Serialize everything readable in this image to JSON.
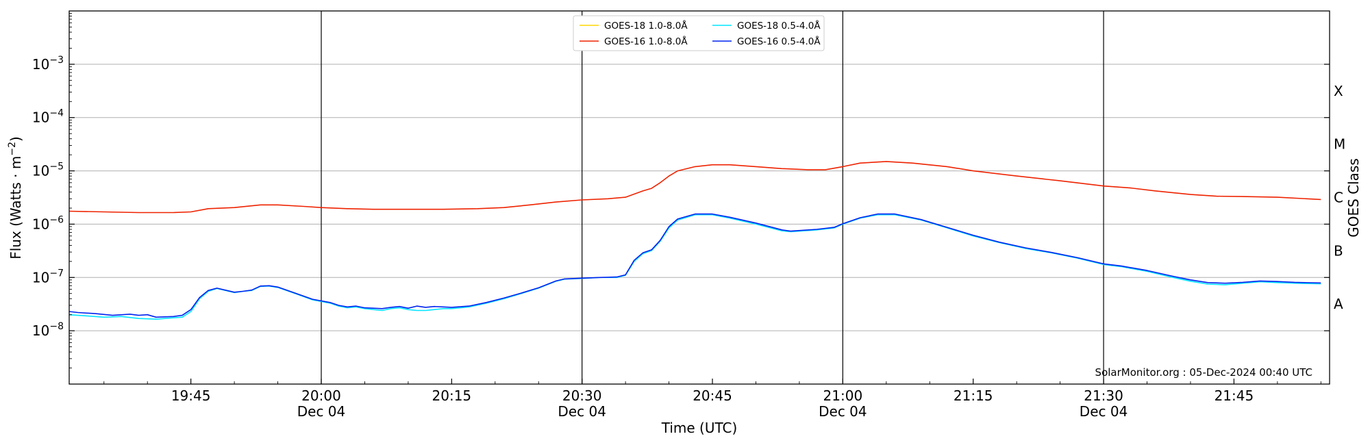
{
  "chart_data": {
    "type": "line",
    "xlabel": "Time (UTC)",
    "ylabel": "Flux (Watts · m⁻²)",
    "y2label": "GOES Class",
    "y_scale": "log",
    "ylim": [
      1e-09,
      0.01
    ],
    "xlim": [
      "2024-12-04 19:31",
      "2024-12-04 21:56"
    ],
    "grid": "horizontal at y decades",
    "legend_position": "top-center",
    "credit": "SolarMonitor.org : 05-Dec-2024 00:40 UTC",
    "x_ticks": [
      {
        "time": "19:45",
        "label": "19:45",
        "date": ""
      },
      {
        "time": "20:00",
        "label": "20:00",
        "date": "Dec 04"
      },
      {
        "time": "20:15",
        "label": "20:15",
        "date": ""
      },
      {
        "time": "20:30",
        "label": "20:30",
        "date": "Dec 04"
      },
      {
        "time": "20:45",
        "label": "20:45",
        "date": ""
      },
      {
        "time": "21:00",
        "label": "21:00",
        "date": "Dec 04"
      },
      {
        "time": "21:15",
        "label": "21:15",
        "date": ""
      },
      {
        "time": "21:30",
        "label": "21:30",
        "date": "Dec 04"
      },
      {
        "time": "21:45",
        "label": "21:45",
        "date": ""
      }
    ],
    "vertical_lines": [
      "20:00",
      "20:30",
      "21:00",
      "21:30"
    ],
    "y_ticks": [
      {
        "value": 1e-08,
        "exp": "-8"
      },
      {
        "value": 1e-07,
        "exp": "-7"
      },
      {
        "value": 1e-06,
        "exp": "-6"
      },
      {
        "value": 1e-05,
        "exp": "-5"
      },
      {
        "value": 0.0001,
        "exp": "-4"
      },
      {
        "value": 0.001,
        "exp": "-3"
      }
    ],
    "goes_classes": [
      {
        "label": "A",
        "value": 3.16e-08
      },
      {
        "label": "B",
        "value": 3.16e-07
      },
      {
        "label": "C",
        "value": 3.16e-06
      },
      {
        "label": "M",
        "value": 3.16e-05
      },
      {
        "label": "X",
        "value": 0.000316
      }
    ],
    "series": [
      {
        "name": "GOES-18 1.0-8.0Å",
        "color": "#ffd700",
        "points": []
      },
      {
        "name": "GOES-16 1.0-8.0Å",
        "color": "#ee2200",
        "points": [
          [
            "19:31",
            1.75e-06
          ],
          [
            "19:35",
            1.7e-06
          ],
          [
            "19:39",
            1.65e-06
          ],
          [
            "19:43",
            1.65e-06
          ],
          [
            "19:45",
            1.7e-06
          ],
          [
            "19:47",
            1.95e-06
          ],
          [
            "19:50",
            2.05e-06
          ],
          [
            "19:53",
            2.3e-06
          ],
          [
            "19:55",
            2.3e-06
          ],
          [
            "19:58",
            2.15e-06
          ],
          [
            "20:00",
            2.05e-06
          ],
          [
            "20:03",
            1.95e-06
          ],
          [
            "20:06",
            1.9e-06
          ],
          [
            "20:10",
            1.9e-06
          ],
          [
            "20:14",
            1.9e-06
          ],
          [
            "20:18",
            1.95e-06
          ],
          [
            "20:21",
            2.05e-06
          ],
          [
            "20:24",
            2.3e-06
          ],
          [
            "20:27",
            2.6e-06
          ],
          [
            "20:30",
            2.85e-06
          ],
          [
            "20:33",
            3e-06
          ],
          [
            "20:35",
            3.2e-06
          ],
          [
            "20:37",
            4.2e-06
          ],
          [
            "20:38",
            4.7e-06
          ],
          [
            "20:39",
            6e-06
          ],
          [
            "20:40",
            8e-06
          ],
          [
            "20:41",
            1e-05
          ],
          [
            "20:43",
            1.2e-05
          ],
          [
            "20:45",
            1.3e-05
          ],
          [
            "20:47",
            1.3e-05
          ],
          [
            "20:50",
            1.2e-05
          ],
          [
            "20:53",
            1.1e-05
          ],
          [
            "20:56",
            1.05e-05
          ],
          [
            "20:58",
            1.05e-05
          ],
          [
            "21:00",
            1.2e-05
          ],
          [
            "21:02",
            1.4e-05
          ],
          [
            "21:05",
            1.5e-05
          ],
          [
            "21:08",
            1.4e-05
          ],
          [
            "21:12",
            1.2e-05
          ],
          [
            "21:15",
            1e-05
          ],
          [
            "21:20",
            8e-06
          ],
          [
            "21:25",
            6.5e-06
          ],
          [
            "21:30",
            5.2e-06
          ],
          [
            "21:33",
            4.8e-06
          ],
          [
            "21:36",
            4.2e-06
          ],
          [
            "21:40",
            3.6e-06
          ],
          [
            "21:43",
            3.35e-06
          ],
          [
            "21:46",
            3.3e-06
          ],
          [
            "21:50",
            3.2e-06
          ],
          [
            "21:55",
            2.9e-06
          ]
        ]
      },
      {
        "name": "GOES-18 0.5-4.0Å",
        "color": "#00e5ff",
        "points": [
          [
            "19:31",
            2e-08
          ],
          [
            "19:33",
            1.9e-08
          ],
          [
            "19:35",
            1.8e-08
          ],
          [
            "19:37",
            1.85e-08
          ],
          [
            "19:39",
            1.7e-08
          ],
          [
            "19:41",
            1.65e-08
          ],
          [
            "19:43",
            1.75e-08
          ],
          [
            "19:44",
            1.8e-08
          ],
          [
            "19:45",
            2.3e-08
          ],
          [
            "19:46",
            4e-08
          ],
          [
            "19:47",
            5.5e-08
          ],
          [
            "19:48",
            6.2e-08
          ],
          [
            "19:50",
            5.2e-08
          ],
          [
            "19:51",
            5.5e-08
          ],
          [
            "19:52",
            5.7e-08
          ],
          [
            "19:53",
            6.8e-08
          ],
          [
            "19:54",
            6.9e-08
          ],
          [
            "19:55",
            6.5e-08
          ],
          [
            "19:57",
            5e-08
          ],
          [
            "19:59",
            3.8e-08
          ],
          [
            "20:01",
            3.3e-08
          ],
          [
            "20:02",
            2.9e-08
          ],
          [
            "20:03",
            2.7e-08
          ],
          [
            "20:04",
            2.8e-08
          ],
          [
            "20:05",
            2.6e-08
          ],
          [
            "20:06",
            2.5e-08
          ],
          [
            "20:07",
            2.4e-08
          ],
          [
            "20:08",
            2.6e-08
          ],
          [
            "20:09",
            2.7e-08
          ],
          [
            "20:10",
            2.5e-08
          ],
          [
            "20:11",
            2.4e-08
          ],
          [
            "20:12",
            2.4e-08
          ],
          [
            "20:13",
            2.5e-08
          ],
          [
            "20:14",
            2.6e-08
          ],
          [
            "20:15",
            2.6e-08
          ],
          [
            "20:17",
            2.8e-08
          ],
          [
            "20:19",
            3.3e-08
          ],
          [
            "20:21",
            4e-08
          ],
          [
            "20:23",
            5e-08
          ],
          [
            "20:25",
            6.3e-08
          ],
          [
            "20:27",
            8.5e-08
          ],
          [
            "20:28",
            9.3e-08
          ],
          [
            "20:30",
            9.6e-08
          ],
          [
            "20:32",
            1e-07
          ],
          [
            "20:34",
            1e-07
          ],
          [
            "20:35",
            1.1e-07
          ],
          [
            "20:36",
            2e-07
          ],
          [
            "20:37",
            2.8e-07
          ],
          [
            "20:38",
            3.2e-07
          ],
          [
            "20:39",
            4.8e-07
          ],
          [
            "20:40",
            8.5e-07
          ],
          [
            "20:41",
            1.2e-06
          ],
          [
            "20:43",
            1.5e-06
          ],
          [
            "20:45",
            1.5e-06
          ],
          [
            "20:47",
            1.3e-06
          ],
          [
            "20:50",
            1e-06
          ],
          [
            "20:53",
            7.5e-07
          ],
          [
            "20:54",
            7.2e-07
          ],
          [
            "20:57",
            7.8e-07
          ],
          [
            "20:59",
            8.5e-07
          ],
          [
            "21:00",
            1e-06
          ],
          [
            "21:02",
            1.3e-06
          ],
          [
            "21:04",
            1.5e-06
          ],
          [
            "21:06",
            1.5e-06
          ],
          [
            "21:09",
            1.2e-06
          ],
          [
            "21:12",
            8.5e-07
          ],
          [
            "21:15",
            6e-07
          ],
          [
            "21:18",
            4.5e-07
          ],
          [
            "21:21",
            3.5e-07
          ],
          [
            "21:24",
            2.9e-07
          ],
          [
            "21:27",
            2.3e-07
          ],
          [
            "21:30",
            1.75e-07
          ],
          [
            "21:32",
            1.6e-07
          ],
          [
            "21:35",
            1.3e-07
          ],
          [
            "21:38",
            1e-07
          ],
          [
            "21:40",
            8.5e-08
          ],
          [
            "21:42",
            7.5e-08
          ],
          [
            "21:44",
            7.3e-08
          ],
          [
            "21:46",
            7.8e-08
          ],
          [
            "21:48",
            8.3e-08
          ],
          [
            "21:50",
            8e-08
          ],
          [
            "21:52",
            7.8e-08
          ],
          [
            "21:55",
            7.6e-08
          ]
        ]
      },
      {
        "name": "GOES-16 0.5-4.0Å",
        "color": "#0022ee",
        "points": [
          [
            "19:31",
            2.3e-08
          ],
          [
            "19:32",
            2.2e-08
          ],
          [
            "19:34",
            2.1e-08
          ],
          [
            "19:36",
            1.95e-08
          ],
          [
            "19:38",
            2.05e-08
          ],
          [
            "19:39",
            1.95e-08
          ],
          [
            "19:40",
            2e-08
          ],
          [
            "19:41",
            1.8e-08
          ],
          [
            "19:43",
            1.85e-08
          ],
          [
            "19:44",
            1.95e-08
          ],
          [
            "19:45",
            2.5e-08
          ],
          [
            "19:46",
            4.2e-08
          ],
          [
            "19:47",
            5.7e-08
          ],
          [
            "19:48",
            6.3e-08
          ],
          [
            "19:50",
            5.3e-08
          ],
          [
            "19:51",
            5.5e-08
          ],
          [
            "19:52",
            5.8e-08
          ],
          [
            "19:53",
            6.9e-08
          ],
          [
            "19:54",
            7e-08
          ],
          [
            "19:55",
            6.6e-08
          ],
          [
            "19:57",
            5.1e-08
          ],
          [
            "19:59",
            3.9e-08
          ],
          [
            "20:01",
            3.4e-08
          ],
          [
            "20:02",
            3e-08
          ],
          [
            "20:03",
            2.8e-08
          ],
          [
            "20:04",
            2.9e-08
          ],
          [
            "20:05",
            2.7e-08
          ],
          [
            "20:06",
            2.65e-08
          ],
          [
            "20:07",
            2.6e-08
          ],
          [
            "20:08",
            2.75e-08
          ],
          [
            "20:09",
            2.85e-08
          ],
          [
            "20:10",
            2.65e-08
          ],
          [
            "20:11",
            2.9e-08
          ],
          [
            "20:12",
            2.75e-08
          ],
          [
            "20:13",
            2.85e-08
          ],
          [
            "20:14",
            2.8e-08
          ],
          [
            "20:15",
            2.75e-08
          ],
          [
            "20:17",
            2.9e-08
          ],
          [
            "20:19",
            3.4e-08
          ],
          [
            "20:21",
            4.1e-08
          ],
          [
            "20:23",
            5.1e-08
          ],
          [
            "20:25",
            6.4e-08
          ],
          [
            "20:27",
            8.6e-08
          ],
          [
            "20:28",
            9.4e-08
          ],
          [
            "20:30",
            9.7e-08
          ],
          [
            "20:32",
            1e-07
          ],
          [
            "20:34",
            1.02e-07
          ],
          [
            "20:35",
            1.12e-07
          ],
          [
            "20:36",
            2.1e-07
          ],
          [
            "20:37",
            2.9e-07
          ],
          [
            "20:38",
            3.3e-07
          ],
          [
            "20:39",
            5e-07
          ],
          [
            "20:40",
            9e-07
          ],
          [
            "20:41",
            1.25e-06
          ],
          [
            "20:43",
            1.55e-06
          ],
          [
            "20:45",
            1.55e-06
          ],
          [
            "20:47",
            1.35e-06
          ],
          [
            "20:50",
            1.05e-06
          ],
          [
            "20:53",
            7.8e-07
          ],
          [
            "20:54",
            7.4e-07
          ],
          [
            "20:57",
            8e-07
          ],
          [
            "20:59",
            8.7e-07
          ],
          [
            "21:00",
            1.02e-06
          ],
          [
            "21:02",
            1.32e-06
          ],
          [
            "21:04",
            1.55e-06
          ],
          [
            "21:06",
            1.55e-06
          ],
          [
            "21:09",
            1.22e-06
          ],
          [
            "21:12",
            8.7e-07
          ],
          [
            "21:15",
            6.2e-07
          ],
          [
            "21:18",
            4.6e-07
          ],
          [
            "21:21",
            3.6e-07
          ],
          [
            "21:24",
            2.95e-07
          ],
          [
            "21:27",
            2.35e-07
          ],
          [
            "21:30",
            1.8e-07
          ],
          [
            "21:32",
            1.65e-07
          ],
          [
            "21:35",
            1.35e-07
          ],
          [
            "21:38",
            1.05e-07
          ],
          [
            "21:40",
            9e-08
          ],
          [
            "21:42",
            8e-08
          ],
          [
            "21:44",
            7.8e-08
          ],
          [
            "21:46",
            8.1e-08
          ],
          [
            "21:48",
            8.6e-08
          ],
          [
            "21:50",
            8.4e-08
          ],
          [
            "21:52",
            8.1e-08
          ],
          [
            "21:55",
            7.9e-08
          ]
        ]
      }
    ]
  }
}
